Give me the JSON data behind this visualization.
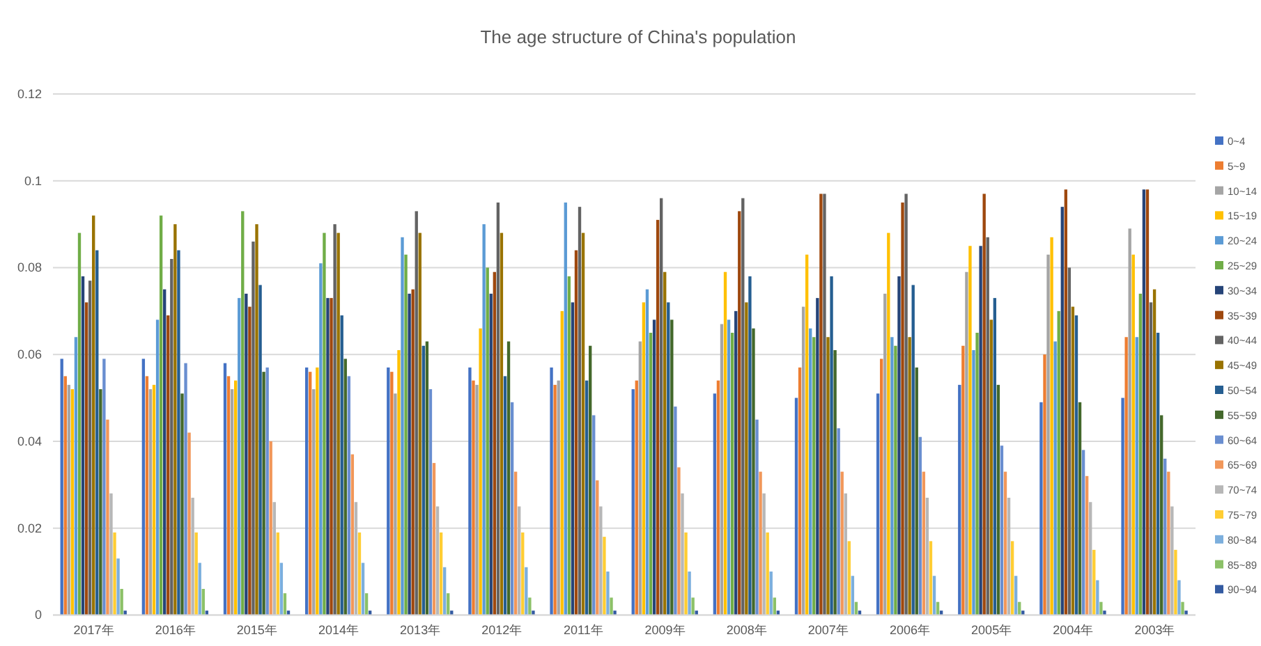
{
  "chart_data": {
    "type": "bar",
    "title": "The age structure of China's population",
    "categories": [
      "2017年",
      "2016年",
      "2015年",
      "2014年",
      "2013年",
      "2012年",
      "2011年",
      "2009年",
      "2008年",
      "2007年",
      "2006年",
      "2005年",
      "2004年",
      "2003年"
    ],
    "series": [
      {
        "name": "0~4",
        "color": "#4472c4",
        "values": [
          0.059,
          0.059,
          0.058,
          0.057,
          0.057,
          0.057,
          0.057,
          0.052,
          0.051,
          0.05,
          0.051,
          0.053,
          0.049,
          0.05
        ]
      },
      {
        "name": "5~9",
        "color": "#ed7d31",
        "values": [
          0.055,
          0.055,
          0.055,
          0.056,
          0.056,
          0.054,
          0.053,
          0.054,
          0.054,
          0.057,
          0.059,
          0.062,
          0.06,
          0.064
        ]
      },
      {
        "name": "10~14",
        "color": "#a5a5a5",
        "values": [
          0.053,
          0.052,
          0.052,
          0.052,
          0.051,
          0.053,
          0.054,
          0.063,
          0.067,
          0.071,
          0.074,
          0.079,
          0.083,
          0.089
        ]
      },
      {
        "name": "15~19",
        "color": "#ffc000",
        "values": [
          0.052,
          0.053,
          0.054,
          0.057,
          0.061,
          0.066,
          0.07,
          0.072,
          0.079,
          0.083,
          0.088,
          0.085,
          0.087,
          0.083
        ]
      },
      {
        "name": "20~24",
        "color": "#5b9bd5",
        "values": [
          0.064,
          0.068,
          0.073,
          0.081,
          0.087,
          0.09,
          0.095,
          0.075,
          0.068,
          0.066,
          0.064,
          0.061,
          0.063,
          0.064
        ]
      },
      {
        "name": "25~29",
        "color": "#70ad47",
        "values": [
          0.088,
          0.092,
          0.093,
          0.088,
          0.083,
          0.08,
          0.078,
          0.065,
          0.065,
          0.064,
          0.062,
          0.065,
          0.07,
          0.074
        ]
      },
      {
        "name": "30~34",
        "color": "#264478",
        "values": [
          0.078,
          0.075,
          0.074,
          0.073,
          0.074,
          0.074,
          0.072,
          0.068,
          0.07,
          0.073,
          0.078,
          0.085,
          0.094,
          0.098
        ]
      },
      {
        "name": "35~39",
        "color": "#9e480e",
        "values": [
          0.072,
          0.069,
          0.071,
          0.073,
          0.075,
          0.079,
          0.084,
          0.091,
          0.093,
          0.097,
          0.095,
          0.097,
          0.098,
          0.098
        ]
      },
      {
        "name": "40~44",
        "color": "#636363",
        "values": [
          0.077,
          0.082,
          0.086,
          0.09,
          0.093,
          0.095,
          0.094,
          0.096,
          0.096,
          0.097,
          0.097,
          0.087,
          0.08,
          0.072
        ]
      },
      {
        "name": "45~49",
        "color": "#997300",
        "values": [
          0.092,
          0.09,
          0.09,
          0.088,
          0.088,
          0.088,
          0.088,
          0.079,
          0.072,
          0.064,
          0.064,
          0.068,
          0.071,
          0.075
        ]
      },
      {
        "name": "50~54",
        "color": "#255e91",
        "values": [
          0.084,
          0.084,
          0.076,
          0.069,
          0.062,
          0.055,
          0.054,
          0.072,
          0.078,
          0.078,
          0.076,
          0.073,
          0.069,
          0.065
        ]
      },
      {
        "name": "55~59",
        "color": "#43682b",
        "values": [
          0.052,
          0.051,
          0.056,
          0.059,
          0.063,
          0.063,
          0.062,
          0.068,
          0.066,
          0.061,
          0.057,
          0.053,
          0.049,
          0.046
        ]
      },
      {
        "name": "60~64",
        "color": "#698ed0",
        "values": [
          0.059,
          0.058,
          0.057,
          0.055,
          0.052,
          0.049,
          0.046,
          0.048,
          0.045,
          0.043,
          0.041,
          0.039,
          0.038,
          0.036
        ]
      },
      {
        "name": "65~69",
        "color": "#f1975a",
        "values": [
          0.045,
          0.042,
          0.04,
          0.037,
          0.035,
          0.033,
          0.031,
          0.034,
          0.033,
          0.033,
          0.033,
          0.033,
          0.032,
          0.033
        ]
      },
      {
        "name": "70~74",
        "color": "#b7b7b7",
        "values": [
          0.028,
          0.027,
          0.026,
          0.026,
          0.025,
          0.025,
          0.025,
          0.028,
          0.028,
          0.028,
          0.027,
          0.027,
          0.026,
          0.025
        ]
      },
      {
        "name": "75~79",
        "color": "#ffcd33",
        "values": [
          0.019,
          0.019,
          0.019,
          0.019,
          0.019,
          0.019,
          0.018,
          0.019,
          0.019,
          0.017,
          0.017,
          0.017,
          0.015,
          0.015
        ]
      },
      {
        "name": "80~84",
        "color": "#7cafdd",
        "values": [
          0.013,
          0.012,
          0.012,
          0.012,
          0.011,
          0.011,
          0.01,
          0.01,
          0.01,
          0.009,
          0.009,
          0.009,
          0.008,
          0.008
        ]
      },
      {
        "name": "85~89",
        "color": "#8cc168",
        "values": [
          0.006,
          0.006,
          0.005,
          0.005,
          0.005,
          0.004,
          0.004,
          0.004,
          0.004,
          0.003,
          0.003,
          0.003,
          0.003,
          0.003
        ]
      },
      {
        "name": "90~94",
        "color": "#335aa1",
        "values": [
          0.001,
          0.001,
          0.001,
          0.001,
          0.001,
          0.001,
          0.001,
          0.001,
          0.001,
          0.001,
          0.001,
          0.001,
          0.001,
          0.001
        ]
      }
    ],
    "ylim": [
      0,
      0.12
    ],
    "yticks": [
      0,
      0.02,
      0.04,
      0.06,
      0.08,
      0.1,
      0.12
    ],
    "grid": "y",
    "legend": "right"
  }
}
